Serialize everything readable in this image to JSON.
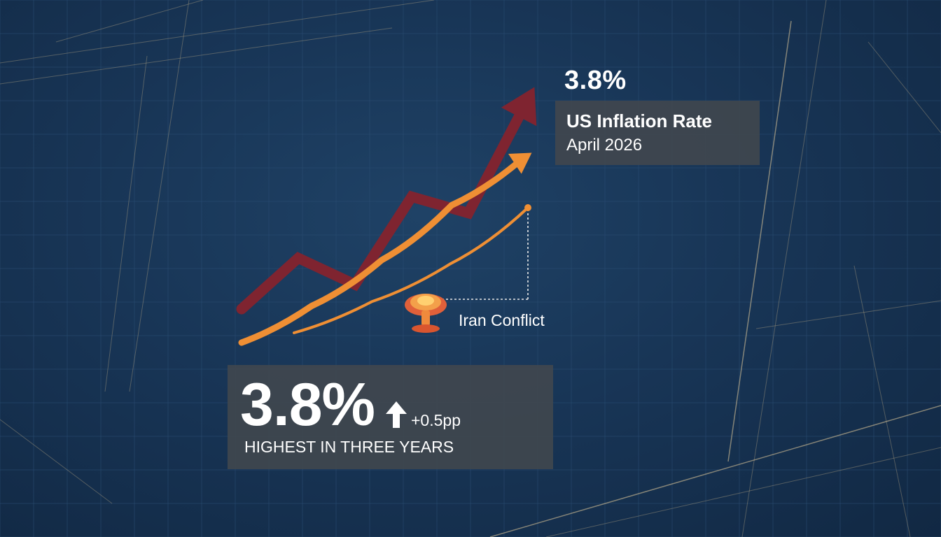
{
  "chart_data": {
    "type": "line",
    "title": "",
    "xlabel": "",
    "ylabel": "",
    "series": [
      {
        "name": "",
        "values": [
          0.0,
          0.25,
          0.12,
          0.55,
          0.47,
          1.0
        ],
        "color": "#7f2430"
      },
      {
        "name": "",
        "values": [
          0.0,
          0.2,
          0.45,
          0.75,
          1.0
        ],
        "color": "#ef8f34"
      },
      {
        "name": "",
        "values": [
          0.0,
          0.25,
          0.55,
          1.0
        ],
        "color": "#ef8f34"
      }
    ]
  },
  "headline": {
    "value": "3.8%"
  },
  "info": {
    "title": "US Inflation Rate",
    "date": "April 2026"
  },
  "event": {
    "label": "Iran Conflict",
    "icon": "mushroom-cloud-icon"
  },
  "stat": {
    "value": "3.8%",
    "change": "+0.5pp",
    "caption": "HIGHEST IN THREE YEARS",
    "arrow_icon": "up-arrow-icon"
  },
  "colors": {
    "background": "#183556",
    "dark_red": "#7f2430",
    "orange": "#ef8f34",
    "panel": "#40464e"
  }
}
